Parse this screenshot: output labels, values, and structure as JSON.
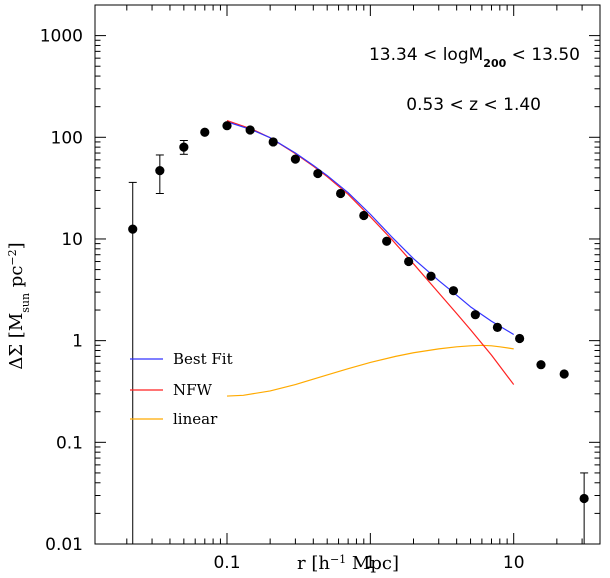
{
  "chart_data": {
    "type": "scatter",
    "xscale": "log",
    "yscale": "log",
    "xlim": [
      0.012,
      40
    ],
    "ylim": [
      0.01,
      2000
    ],
    "grid": false,
    "xlabel": {
      "main": "r  [h",
      "sup": "−1",
      "tail": " Mpc]"
    },
    "ylabel": {
      "delta": "ΔΣ",
      "open": "  [M",
      "sub": "sun",
      "mid": "  pc",
      "sup": "−2",
      "close": "]"
    },
    "x_ticks": [
      {
        "value": 0.1,
        "label": "0.1"
      },
      {
        "value": 1,
        "label": "1"
      },
      {
        "value": 10,
        "label": "10"
      }
    ],
    "y_ticks": [
      {
        "value": 0.01,
        "label": "0.01"
      },
      {
        "value": 0.1,
        "label": "0.1"
      },
      {
        "value": 1,
        "label": "1"
      },
      {
        "value": 10,
        "label": "10"
      },
      {
        "value": 100,
        "label": "100"
      },
      {
        "value": 1000,
        "label": "1000"
      }
    ],
    "annotations": {
      "mass": {
        "pre": "13.34  <  logM",
        "sub": "200",
        "post": "  <  13.50"
      },
      "redshift": "0.53  <  z  <  1.40"
    },
    "legend": {
      "placement": "lower-left",
      "entries": [
        {
          "label": "Best Fit",
          "color": "#3333ff"
        },
        {
          "label": "NFW",
          "color": "#ff2222"
        },
        {
          "label": "linear",
          "color": "#ffaa00"
        }
      ]
    },
    "points": [
      {
        "x": 0.022,
        "y": 12.5,
        "ylo": 0.01,
        "yhi": 36
      },
      {
        "x": 0.034,
        "y": 47,
        "ylo": 28,
        "yhi": 67
      },
      {
        "x": 0.05,
        "y": 80,
        "ylo": 68,
        "yhi": 93
      },
      {
        "x": 0.07,
        "y": 112,
        "ylo": 105,
        "yhi": 120
      },
      {
        "x": 0.1,
        "y": 130,
        "ylo": 124,
        "yhi": 137
      },
      {
        "x": 0.145,
        "y": 118,
        "ylo": 114,
        "yhi": 122
      },
      {
        "x": 0.21,
        "y": 90,
        "ylo": 87,
        "yhi": 93
      },
      {
        "x": 0.3,
        "y": 61,
        "ylo": 59,
        "yhi": 63
      },
      {
        "x": 0.43,
        "y": 44,
        "ylo": 42.5,
        "yhi": 45.5
      },
      {
        "x": 0.62,
        "y": 28,
        "ylo": 27,
        "yhi": 29
      },
      {
        "x": 0.9,
        "y": 17,
        "ylo": 16.3,
        "yhi": 17.7
      },
      {
        "x": 1.3,
        "y": 9.5,
        "ylo": 9.1,
        "yhi": 9.9
      },
      {
        "x": 1.85,
        "y": 6,
        "ylo": 5.7,
        "yhi": 6.3
      },
      {
        "x": 2.65,
        "y": 4.3,
        "ylo": 4.1,
        "yhi": 4.5
      },
      {
        "x": 3.8,
        "y": 3.1,
        "ylo": 2.95,
        "yhi": 3.25
      },
      {
        "x": 5.4,
        "y": 1.8,
        "ylo": 1.7,
        "yhi": 1.9
      },
      {
        "x": 7.7,
        "y": 1.35,
        "ylo": 1.28,
        "yhi": 1.42
      },
      {
        "x": 11,
        "y": 1.05,
        "ylo": 1.0,
        "yhi": 1.1
      },
      {
        "x": 15.5,
        "y": 0.58,
        "ylo": 0.55,
        "yhi": 0.61
      },
      {
        "x": 22.5,
        "y": 0.47,
        "ylo": 0.445,
        "yhi": 0.495
      },
      {
        "x": 31,
        "y": 0.028,
        "ylo": 0.01,
        "yhi": 0.05
      }
    ],
    "series": [
      {
        "name": "Best Fit",
        "color": "#3333ff",
        "x": [
          0.1,
          0.15,
          0.2,
          0.3,
          0.4,
          0.5,
          0.7,
          1.0,
          1.4,
          2.0,
          3.0,
          4.0,
          5.0,
          7.0,
          10.0
        ],
        "y": [
          142,
          118,
          99,
          70,
          53,
          42,
          28.5,
          17.5,
          10.6,
          6.4,
          3.9,
          2.8,
          2.15,
          1.55,
          1.15
        ]
      },
      {
        "name": "NFW",
        "color": "#ff2222",
        "x": [
          0.1,
          0.15,
          0.2,
          0.3,
          0.4,
          0.5,
          0.7,
          1.0,
          1.4,
          2.0,
          3.0,
          4.0,
          5.0,
          7.0,
          10.0
        ],
        "y": [
          146,
          120,
          99,
          69,
          52,
          41,
          27.5,
          16.5,
          10,
          5.7,
          2.95,
          1.85,
          1.28,
          0.72,
          0.37
        ]
      },
      {
        "name": "linear",
        "color": "#ffaa00",
        "x": [
          0.1,
          0.13,
          0.2,
          0.3,
          0.5,
          0.7,
          1.0,
          1.5,
          2.0,
          3.0,
          4.0,
          5.0,
          6.0,
          7.0,
          8.0,
          10.0
        ],
        "y": [
          0.285,
          0.29,
          0.32,
          0.37,
          0.46,
          0.53,
          0.61,
          0.7,
          0.76,
          0.83,
          0.87,
          0.89,
          0.9,
          0.89,
          0.87,
          0.83
        ]
      }
    ]
  }
}
